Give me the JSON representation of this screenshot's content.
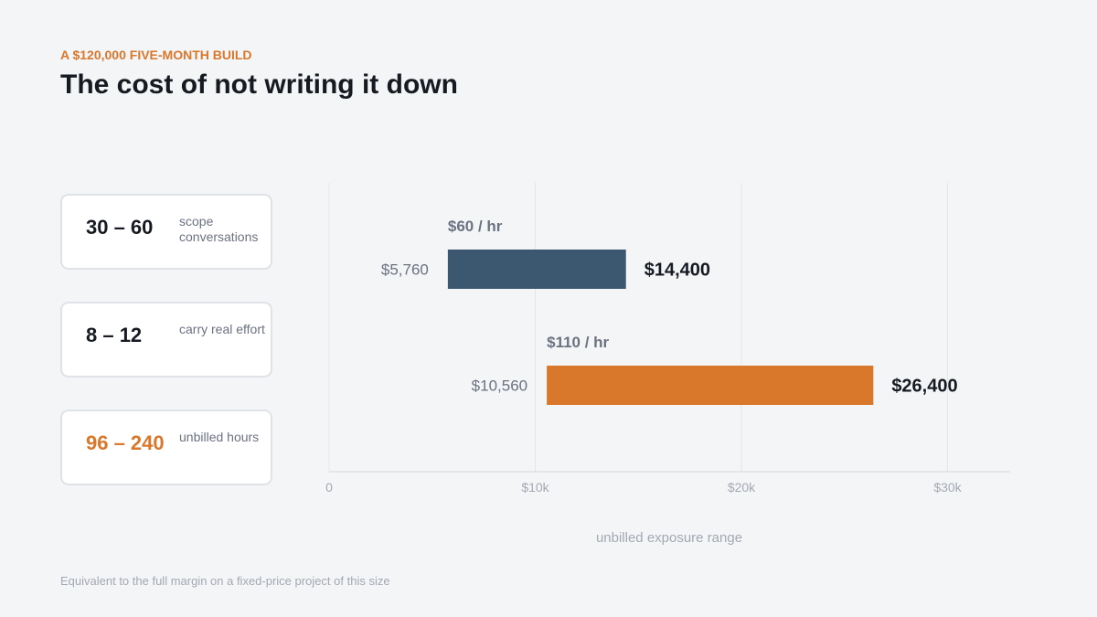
{
  "header": {
    "eyebrow": "A $120,000 FIVE-MONTH BUILD",
    "title": "The cost of not writing it down"
  },
  "stats": [
    {
      "value": "30 – 60",
      "label": "scope conversations",
      "accent": false
    },
    {
      "value": "8 – 12",
      "label": "carry real effort",
      "accent": false
    },
    {
      "value": "96 – 240",
      "label": "unbilled hours",
      "accent": true
    }
  ],
  "chart_data": {
    "type": "bar",
    "subtype": "range",
    "xlabel": "unbilled exposure range",
    "xlim": [
      0,
      33000
    ],
    "ticks": [
      {
        "value": 0,
        "label": "0"
      },
      {
        "value": 10000,
        "label": "$10k"
      },
      {
        "value": 20000,
        "label": "$20k"
      },
      {
        "value": 30000,
        "label": "$30k"
      }
    ],
    "grid": true,
    "series": [
      {
        "name": "$60 / hr",
        "low": 5760,
        "high": 14400,
        "low_label": "$5,760",
        "high_label": "$14,400",
        "color": "#3b5870"
      },
      {
        "name": "$110 / hr",
        "low": 10560,
        "high": 26400,
        "low_label": "$10,560",
        "high_label": "$26,400",
        "color": "#d9772b"
      }
    ]
  },
  "footnote": "Equivalent to the full margin on a fixed-price project of this size"
}
